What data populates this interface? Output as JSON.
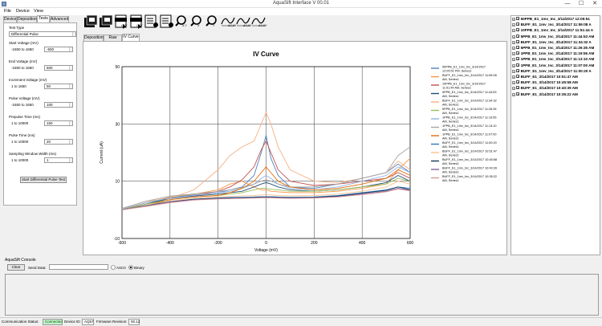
{
  "window": {
    "title": "AquaSift Interface V 00.01",
    "minimize": "—",
    "maximize": "☐",
    "close": "✕"
  },
  "menu": [
    "File",
    "Device",
    "View"
  ],
  "left_tabs": [
    "Device",
    "Deposition",
    "Tests",
    "Advanced"
  ],
  "test_type": {
    "label": "Test Type",
    "value": "Differential Pulse"
  },
  "params": [
    {
      "label": "Start Voltage (mV)",
      "range": "-1650 to 1650",
      "value": "-500"
    },
    {
      "label": "End Voltage (mV)",
      "range": "-1650 to 1650",
      "value": "500"
    },
    {
      "label": "Increment Voltage (mV)",
      "range": "1 to 1650",
      "value": "50"
    },
    {
      "label": "Pulse Voltage (mV)",
      "range": "-1650 to 1650",
      "value": "100"
    },
    {
      "label": "Prepulse Time (ms)",
      "range": "1 to 10000",
      "value": "150"
    },
    {
      "label": "Pulse Time (ms)",
      "range": "1 to 10000",
      "value": "20"
    },
    {
      "label": "Sampling Window Width (ms)",
      "range": "1 to 10000",
      "value": "1"
    }
  ],
  "start_button": "Start Differential Pulse Test",
  "center_tabs": [
    "Deposition",
    "Raw Data",
    "IV Curve"
  ],
  "toolbar": [
    {
      "icon": "save-multi-icon",
      "text": ""
    },
    {
      "icon": "export-icon",
      "text": ""
    },
    {
      "icon": "csv-icon",
      "text": "CSV"
    },
    {
      "icon": "csv-icon",
      "text": "CSV"
    },
    {
      "icon": "list-settings-icon",
      "text": ""
    },
    {
      "icon": "list-settings-icon",
      "text": ""
    },
    {
      "icon": "zoom-xy-icon",
      "text": "X,Y"
    },
    {
      "icon": "zoom-x-icon",
      "text": "X"
    },
    {
      "icon": "zoom-y-icon",
      "text": "Y"
    },
    {
      "icon": "wave-icon",
      "text": "ΔX,ΔY"
    },
    {
      "icon": "wave-icon",
      "text": "ΔX,ΔY"
    },
    {
      "icon": "wave-icon",
      "text": "ΔX,ΔY"
    }
  ],
  "chart_data": {
    "type": "line",
    "title": "IV Curve",
    "xlabel": "Voltage (mV)",
    "ylabel": "Current (uA)",
    "xlim": [
      -600,
      600
    ],
    "ylim": [
      -10,
      50
    ],
    "xticks": [
      -600,
      -400,
      -200,
      0,
      200,
      400,
      600
    ],
    "yticks": [
      -10,
      10,
      30,
      50
    ],
    "grid": true,
    "legend_position": "right",
    "series": [
      {
        "name": "50PPB_E1_1mv_Inc_3/14/2017 12:05:51 PM, Series1",
        "color": "#4f81bd",
        "x": [
          -600,
          -500,
          -400,
          -300,
          -200,
          -150,
          -100,
          -50,
          -20,
          0,
          20,
          50,
          100,
          200,
          300,
          400,
          500,
          550,
          600
        ],
        "y": [
          0.1,
          2,
          4.5,
          5.2,
          6,
          7,
          8,
          12,
          20,
          26,
          18,
          12,
          8,
          7.5,
          9,
          11,
          13,
          16,
          13
        ]
      },
      {
        "name": "BUFF_E1_1mv_Inc_3/14/2017 11:59:08 AM, Series1",
        "color": "#f79646",
        "x": [
          -600,
          -500,
          -400,
          -300,
          -200,
          -150,
          -100,
          -50,
          -20,
          0,
          20,
          50,
          100,
          200,
          300,
          400,
          500,
          550,
          600
        ],
        "y": [
          0,
          2.5,
          4.5,
          5.5,
          7,
          9,
          10,
          8,
          7,
          7,
          6.5,
          6.3,
          6,
          6,
          6.5,
          7.5,
          9,
          14,
          18
        ]
      },
      {
        "name": "10PPB_E1_1mv_Inc_3/14/2017 11:51:44 AM, Series1",
        "color": "#c0504d",
        "x": [
          -600,
          -500,
          -400,
          -300,
          -200,
          -150,
          -100,
          -50,
          -20,
          0,
          20,
          50,
          100,
          200,
          300,
          400,
          500,
          550,
          600
        ],
        "y": [
          0,
          2,
          4,
          5,
          6.5,
          8,
          10.5,
          15,
          21,
          24,
          20,
          14,
          10,
          8.5,
          9,
          10,
          11,
          13,
          11
        ]
      },
      {
        "name": "5PPB_E1_1mv_Inc_3/14/2017 11:44:53 AM, Series1",
        "color": "#1f4e79",
        "x": [
          -600,
          -500,
          -400,
          -300,
          -200,
          -150,
          -100,
          -50,
          -20,
          0,
          20,
          50,
          100,
          200,
          300,
          400,
          500,
          550,
          600
        ],
        "y": [
          0,
          2,
          4,
          4.8,
          5.5,
          6,
          6.5,
          8,
          9,
          9.5,
          9,
          8,
          7,
          6.5,
          7,
          8,
          9.5,
          12,
          10
        ]
      },
      {
        "name": "BUFF_E1_1mv_Inc_3/14/2017 11:34:32 AM, Series1",
        "color": "#f4b183",
        "x": [
          -600,
          -500,
          -400,
          -300,
          -200,
          -150,
          -100,
          -50,
          -20,
          0,
          20,
          50,
          100,
          200,
          300,
          400,
          500,
          550,
          600
        ],
        "y": [
          0.5,
          3,
          4,
          7,
          14,
          19,
          22,
          24,
          30,
          34,
          30,
          22,
          14,
          10,
          9.5,
          11,
          13,
          17,
          14
        ]
      },
      {
        "name": "5PPB_E1_1mv_Inc_3/14/2017 11:26:35 AM, Series1",
        "color": "#9bbb59",
        "x": [
          -600,
          -500,
          -400,
          -300,
          -200,
          -150,
          -100,
          -50,
          -20,
          0,
          20,
          50,
          100,
          200,
          300,
          400,
          500,
          550,
          600
        ],
        "y": [
          0,
          2,
          3.5,
          4.5,
          5,
          5.5,
          6,
          7,
          7.5,
          7.5,
          7.2,
          7,
          6.5,
          6.5,
          7,
          8,
          9,
          11,
          10
        ]
      },
      {
        "name": "1PPB_E1_1mv_Inc_3/14/2017 11:19:55 AM, Series1",
        "color": "#8eb4e3",
        "x": [
          -600,
          -500,
          -400,
          -300,
          -200,
          -150,
          -100,
          -50,
          -20,
          0,
          20,
          50,
          100,
          200,
          300,
          400,
          500,
          550,
          600
        ],
        "y": [
          0.3,
          2.5,
          4.2,
          5,
          6,
          6.5,
          7.5,
          9,
          11,
          12,
          11,
          9,
          7.5,
          7,
          8,
          10,
          12,
          15,
          13
        ]
      },
      {
        "name": "1PPB_E1_1mv_Inc_3/14/2017 11:13:10 AM, Series1",
        "color": "#a6a6a6",
        "x": [
          -600,
          -500,
          -400,
          -300,
          -200,
          -150,
          -100,
          -50,
          -20,
          0,
          20,
          50,
          100,
          200,
          300,
          400,
          500,
          550,
          600
        ],
        "y": [
          0.5,
          3,
          4.8,
          5.6,
          6.4,
          7,
          7.8,
          9,
          10,
          10.5,
          10,
          9,
          8,
          8,
          9,
          11,
          13,
          19,
          22
        ]
      },
      {
        "name": "1PPB_E1_1mv_Inc_3/14/2017 11:07:00 AM, Series1",
        "color": "#e46c0a",
        "x": [
          -600,
          -500,
          -400,
          -300,
          -200,
          -150,
          -100,
          -50,
          -20,
          0,
          20,
          50,
          100,
          200,
          300,
          400,
          500,
          550,
          600
        ],
        "y": [
          0,
          1.5,
          3.5,
          4.5,
          5,
          6,
          7.5,
          10,
          13,
          15,
          13,
          10,
          8,
          7,
          7.5,
          9,
          11,
          14,
          12
        ]
      },
      {
        "name": "BUFF_E1_1mv_Inc_3/14/2017 11:00:20 AM, Series1",
        "color": "#2e75b6",
        "x": [
          -600,
          -500,
          -400,
          -300,
          -200,
          -150,
          -100,
          -50,
          -20,
          0,
          20,
          50,
          100,
          200,
          300,
          400,
          500,
          550,
          600
        ],
        "y": [
          0,
          1.5,
          3,
          3.8,
          4.2,
          4.3,
          4.4,
          4.5,
          4.6,
          4.6,
          4.6,
          4.5,
          4.4,
          4.5,
          5,
          6,
          7,
          8,
          7.5
        ]
      },
      {
        "name": "BUFF_E1_1mv_Inc_3/14/2017 10:51:47 AM, Series1",
        "color": "#fac090",
        "x": [
          -600,
          -500,
          -400,
          -300,
          -200,
          -150,
          -100,
          -50,
          -20,
          0,
          20,
          50,
          100,
          200,
          300,
          400,
          500,
          550,
          600
        ],
        "y": [
          0,
          1.5,
          3,
          4,
          4.5,
          4.7,
          4.9,
          5,
          5.2,
          5.3,
          5.2,
          5,
          4.9,
          5,
          5.5,
          6.5,
          8,
          10,
          9
        ]
      },
      {
        "name": "BUFF_E1_1mv_Inc_3/14/2017 10:45:58 AM, Series1",
        "color": "#17375e",
        "x": [
          -600,
          -500,
          -400,
          -300,
          -200,
          -150,
          -100,
          -50,
          -20,
          0,
          20,
          50,
          100,
          200,
          300,
          400,
          500,
          550,
          600
        ],
        "y": [
          0,
          1.4,
          2.8,
          3.6,
          4,
          4.1,
          4.2,
          4.3,
          4.4,
          4.4,
          4.4,
          4.3,
          4.2,
          4.3,
          4.8,
          5.8,
          6.8,
          8,
          7
        ]
      },
      {
        "name": "BUFF_E1_1mv_Inc_3/14/2017 10:40:39 AM, Series1",
        "color": "#8064a2",
        "x": [
          -600,
          -500,
          -400,
          -300,
          -200,
          -150,
          -100,
          -50,
          -20,
          0,
          20,
          50,
          100,
          200,
          300,
          400,
          500,
          550,
          600
        ],
        "y": [
          0,
          1.3,
          2.7,
          3.5,
          3.9,
          4,
          4.1,
          4.2,
          4.3,
          4.3,
          4.3,
          4.2,
          4.1,
          4.2,
          4.6,
          5.5,
          6.5,
          7.5,
          6.8
        ]
      },
      {
        "name": "BUFF_E1_1mv_Inc_3/14/2017 10:35:22 AM, Series1",
        "color": "#d99694",
        "x": [
          -600,
          -500,
          -400,
          -300,
          -200,
          -150,
          -100,
          -50,
          -20,
          0,
          20,
          50,
          100,
          200,
          300,
          400,
          500,
          550,
          600
        ],
        "y": [
          0,
          1.2,
          2.5,
          3.4,
          3.8,
          3.9,
          4,
          4.1,
          4.2,
          4.2,
          4.2,
          4.1,
          4,
          4.1,
          4.5,
          5.3,
          6.3,
          7.3,
          6.6
        ]
      }
    ]
  },
  "tree_items": [
    "50PPB_E1_1mv_Inc_3/14/2017 12:05:51",
    "BUFF_E1_1mv_Inc_3/14/2017 11:59:08 A",
    "10PPB_E1_1mv_Inc_3/14/2017 11:51:44 A",
    "5PPB_E1_1mv_Inc_3/14/2017 11:44:53 AM",
    "BUFF_E1_1mv_Inc_3/14/2017 11:34:32 A",
    "5PPB_E1_1mv_Inc_3/14/2017 11:26:35 AM",
    "1PPB_E1_1mv_Inc_3/14/2017 11:19:55 AM",
    "1PPB_E1_1mv_Inc_3/14/2017 11:13:10 AM",
    "1PPB_E1_1mv_Inc_3/14/2017 11:07:00 AM",
    "BUFF_E1_1mv_Inc_3/14/2017 11:00:20 A",
    "BUFF_E1_3/14/2017 10:51:47 AM",
    "BUFF_E1_3/14/2017 10:45:58 AM",
    "BUFF_E1_3/14/2017 10:40:39 AM",
    "BUFF_E1_3/14/2017 10:35:22 AM"
  ],
  "console": {
    "title": "AquaSift Console",
    "clear": "Clear",
    "send_label": "Send Data:",
    "send_value": "",
    "ascii": "ASCII",
    "binary": "Binary"
  },
  "status": {
    "comm_label": "Communication Status:",
    "comm_value": "Connected",
    "device_label": "Device ID:",
    "device_value": "AQ57",
    "firmware_label": "Firmware Revision:",
    "firmware_value": "00.12"
  },
  "colors": {
    "connected_bg": "#c6efce",
    "connected_text": "#006100",
    "plot_grid": "#000000"
  }
}
